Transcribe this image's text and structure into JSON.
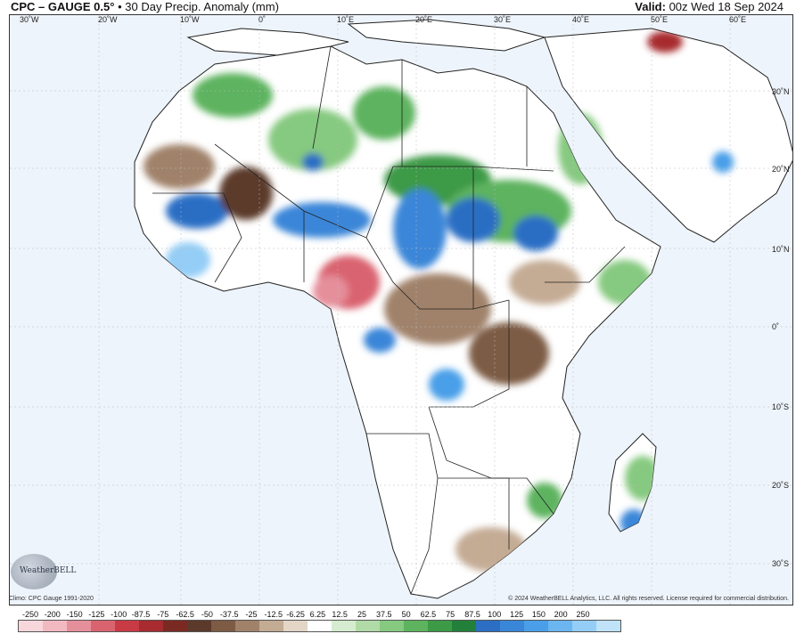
{
  "header": {
    "title": "CPC – GAUGE 0.5°",
    "subtitle": "• 30 Day Precip. Anomaly (mm)",
    "valid_label": "Valid:",
    "valid_value": "00z Wed 18 Sep 2024"
  },
  "map": {
    "lon_labels": [
      "30˚W",
      "20˚W",
      "10˚W",
      "0˚",
      "10˚E",
      "20˚E",
      "30˚E",
      "40˚E",
      "50˚E",
      "60˚E"
    ],
    "lat_labels": [
      "30˚N",
      "20˚N",
      "10˚N",
      "0˚",
      "10˚S",
      "20˚S",
      "30˚S"
    ],
    "ocean_color": "#eef4fb",
    "land_color": "#ffffff",
    "border_color": "#222222"
  },
  "branding": {
    "logo_text": "WeatherBELL",
    "climo_note": "Climo: CPC Gauge 1991-2020",
    "copyright": "© 2024 WeatherBELL Analytics, LLC. All rights reserved. License required for commercial distribution."
  },
  "legend": {
    "ticks": [
      "-250",
      "-200",
      "-150",
      "-125",
      "-100",
      "-87.5",
      "-75",
      "-62.5",
      "-50",
      "-37.5",
      "-25",
      "-12.5",
      "-6.25",
      "6.25",
      "12.5",
      "25",
      "37.5",
      "50",
      "62.5",
      "75",
      "87.5",
      "100",
      "125",
      "150",
      "200",
      "250"
    ],
    "colors": [
      "#f8d7dc",
      "#f2b9c1",
      "#e58f9b",
      "#d9646f",
      "#c83b45",
      "#a72b2f",
      "#7a2a22",
      "#5b3a2b",
      "#7d5b45",
      "#a0826a",
      "#c4ab94",
      "#e3d6c7",
      "#ffffff",
      "#d6ecd0",
      "#b0dba7",
      "#86c980",
      "#5db35e",
      "#3d9a46",
      "#23803a",
      "#2c6ec4",
      "#3a86d8",
      "#4a9fe8",
      "#6bb6f0",
      "#94cdf6",
      "#c0e3fa"
    ]
  }
}
